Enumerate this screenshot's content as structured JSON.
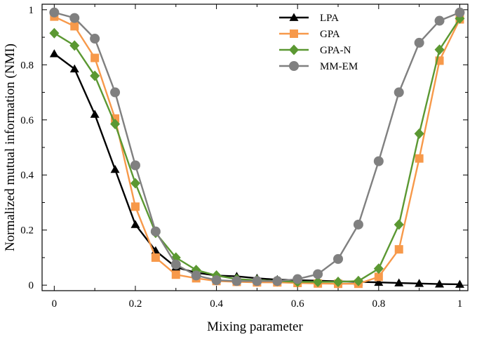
{
  "chart_data": {
    "type": "line",
    "title": "",
    "xlabel": "Mixing parameter",
    "ylabel": "Normalized mutual information (NMI)",
    "xlim": [
      -0.03,
      1.02
    ],
    "ylim": [
      -0.02,
      1.02
    ],
    "xticks": [
      0,
      0.2,
      0.4,
      0.6,
      0.8,
      1
    ],
    "xtick_labels": [
      "0",
      "0.2",
      "0.4",
      "0.6",
      "0.8",
      "1"
    ],
    "yticks": [
      0,
      0.2,
      0.4,
      0.6,
      0.8,
      1
    ],
    "ytick_labels": [
      "0",
      "0.2",
      "0.4",
      "0.6",
      "0.8",
      "1"
    ],
    "legend_position": "top-right",
    "x": [
      0,
      0.05,
      0.1,
      0.15,
      0.2,
      0.25,
      0.3,
      0.35,
      0.4,
      0.45,
      0.5,
      0.55,
      0.6,
      0.65,
      0.7,
      0.75,
      0.8,
      0.85,
      0.9,
      0.95,
      1
    ],
    "series": [
      {
        "name": "LPA",
        "color": "#000000",
        "marker": "triangle",
        "values": [
          0.84,
          0.785,
          0.62,
          0.42,
          0.22,
          0.125,
          0.065,
          0.045,
          0.035,
          0.032,
          0.025,
          0.02,
          0.018,
          0.016,
          0.014,
          0.012,
          0.01,
          0.008,
          0.006,
          0.004,
          0.003
        ]
      },
      {
        "name": "GPA",
        "color": "#f7994a",
        "marker": "square",
        "values": [
          0.975,
          0.94,
          0.825,
          0.605,
          0.285,
          0.1,
          0.038,
          0.025,
          0.015,
          0.012,
          0.01,
          0.01,
          0.008,
          0.006,
          0.005,
          0.005,
          0.03,
          0.13,
          0.46,
          0.815,
          0.965
        ]
      },
      {
        "name": "GPA-N",
        "color": "#5b9832",
        "marker": "diamond",
        "values": [
          0.915,
          0.87,
          0.76,
          0.585,
          0.37,
          0.19,
          0.1,
          0.055,
          0.035,
          0.022,
          0.018,
          0.015,
          0.012,
          0.012,
          0.012,
          0.015,
          0.06,
          0.22,
          0.55,
          0.855,
          0.968
        ]
      },
      {
        "name": "MM-EM",
        "color": "#808080",
        "marker": "circle",
        "values": [
          0.99,
          0.97,
          0.895,
          0.7,
          0.435,
          0.195,
          0.075,
          0.035,
          0.018,
          0.015,
          0.015,
          0.015,
          0.022,
          0.04,
          0.095,
          0.22,
          0.45,
          0.7,
          0.88,
          0.96,
          0.99
        ]
      }
    ]
  }
}
